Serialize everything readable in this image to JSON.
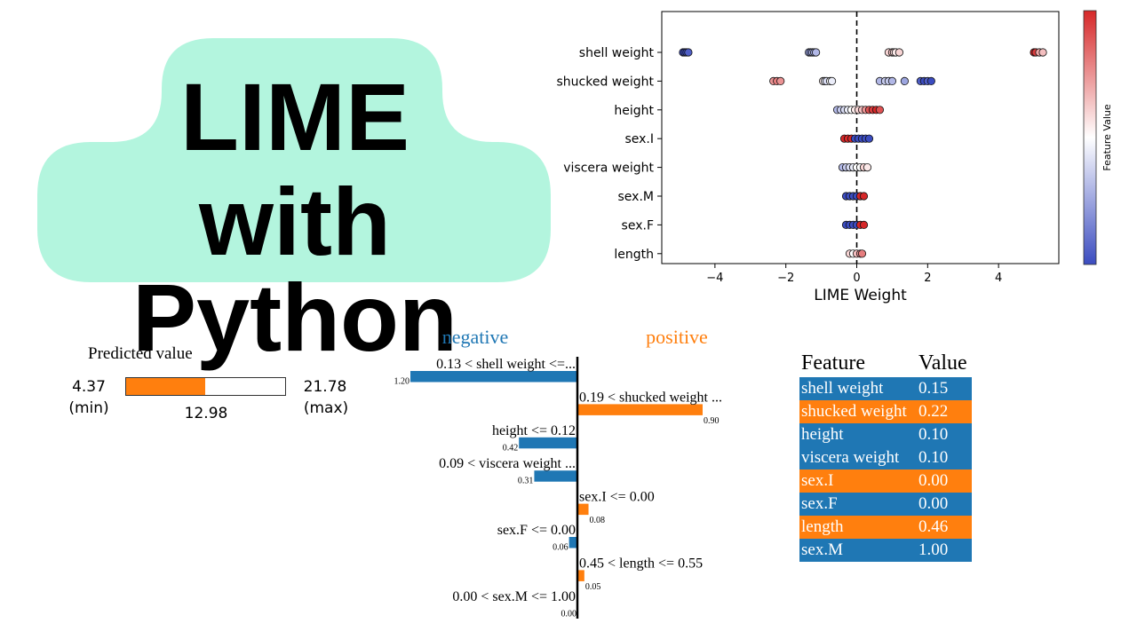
{
  "title": {
    "line1": "LIME",
    "line2": "with Python",
    "bg_color": "#b3f5de"
  },
  "colors": {
    "negative": "#1f77b4",
    "positive": "#ff7f0e",
    "colormap": [
      "#3b4cc0",
      "#ffffff",
      "#d62728"
    ]
  },
  "chart_data": [
    {
      "type": "scatter",
      "xlabel": "LIME Weight",
      "colorbar_label": "Feature Value",
      "xlim": [
        -5.5,
        5.7
      ],
      "xticks": [
        -4,
        -2,
        0,
        2,
        4
      ],
      "xtick_labels": [
        "−4",
        "−2",
        "0",
        "2",
        "4"
      ],
      "reference_line": 0,
      "features": [
        "shell weight",
        "shucked weight",
        "height",
        "sex.I",
        "viscera weight",
        "sex.M",
        "sex.F",
        "length"
      ],
      "points": [
        {
          "feature": "shell weight",
          "x": [
            -4.9,
            -4.85,
            -4.8,
            -4.75,
            -1.35,
            -1.3,
            -1.25,
            -1.2,
            -1.15,
            0.9,
            1.0,
            1.05,
            1.1,
            1.2,
            5.0,
            5.05,
            5.15,
            5.25
          ],
          "values": [
            0.0,
            0.0,
            0.0,
            0.05,
            0.25,
            0.2,
            0.3,
            0.25,
            0.3,
            0.6,
            0.65,
            0.6,
            0.55,
            0.6,
            1.0,
            0.95,
            0.7,
            0.65
          ]
        },
        {
          "feature": "shucked weight",
          "x": [
            -2.35,
            -2.25,
            -2.15,
            -0.95,
            -0.9,
            -0.85,
            -0.75,
            -0.7,
            0.65,
            0.8,
            0.9,
            1.0,
            1.35,
            1.8,
            1.9,
            2.0,
            2.1
          ],
          "values": [
            0.75,
            0.8,
            0.75,
            0.55,
            0.45,
            0.4,
            0.5,
            0.45,
            0.3,
            0.35,
            0.35,
            0.3,
            0.25,
            0.05,
            0.0,
            0.05,
            0.0
          ]
        },
        {
          "feature": "height",
          "x": [
            -0.55,
            -0.45,
            -0.35,
            -0.25,
            -0.15,
            -0.05,
            0.05,
            0.15,
            0.25,
            0.35,
            0.45,
            0.55,
            0.65
          ],
          "values": [
            0.3,
            0.35,
            0.4,
            0.45,
            0.5,
            0.55,
            0.6,
            0.65,
            0.75,
            0.9,
            0.95,
            1.0,
            0.9
          ]
        },
        {
          "feature": "sex.I",
          "x": [
            -0.35,
            -0.25,
            -0.15,
            -0.05,
            0.05,
            0.15,
            0.25,
            0.35
          ],
          "values": [
            1.0,
            1.0,
            1.0,
            0.0,
            0.0,
            0.0,
            0.0,
            0.0
          ]
        },
        {
          "feature": "viscera weight",
          "x": [
            -0.4,
            -0.3,
            -0.2,
            -0.1,
            0.0,
            0.1,
            0.2,
            0.3
          ],
          "values": [
            0.3,
            0.35,
            0.4,
            0.45,
            0.5,
            0.5,
            0.6,
            0.55
          ]
        },
        {
          "feature": "sex.M",
          "x": [
            -0.3,
            -0.2,
            -0.1,
            0.0,
            0.1,
            0.2
          ],
          "values": [
            0.0,
            0.0,
            0.0,
            0.0,
            1.0,
            1.0
          ]
        },
        {
          "feature": "sex.F",
          "x": [
            -0.3,
            -0.2,
            -0.1,
            0.0,
            0.1,
            0.2
          ],
          "values": [
            0.0,
            0.0,
            0.0,
            0.0,
            1.0,
            1.0
          ]
        },
        {
          "feature": "length",
          "x": [
            -0.2,
            -0.1,
            0.0,
            0.1,
            0.15
          ],
          "values": [
            0.6,
            0.5,
            0.65,
            0.75,
            0.8
          ]
        }
      ]
    },
    {
      "type": "bar",
      "orientation": "horizontal",
      "group_labels": {
        "negative": "negative",
        "positive": "positive"
      },
      "xlim": [
        -1.2,
        1.2
      ],
      "bars": [
        {
          "label": "0.13 < shell weight <=...",
          "value": -1.2,
          "value_label": "1.20"
        },
        {
          "label": "0.19 < shucked weight ...",
          "value": 0.9,
          "value_label": "0.90"
        },
        {
          "label": "height <= 0.12",
          "value": -0.42,
          "value_label": "0.42"
        },
        {
          "label": "0.09 < viscera weight ...",
          "value": -0.31,
          "value_label": "0.31"
        },
        {
          "label": "sex.I <= 0.00",
          "value": 0.08,
          "value_label": "0.08"
        },
        {
          "label": "sex.F <= 0.00",
          "value": -0.06,
          "value_label": "0.06"
        },
        {
          "label": "0.45 < length <= 0.55",
          "value": 0.05,
          "value_label": "0.05"
        },
        {
          "label": "0.00 < sex.M <= 1.00",
          "value": 0.0,
          "value_label": "0.00"
        }
      ]
    }
  ],
  "predicted": {
    "title": "Predicted value",
    "min": 4.37,
    "max": 21.78,
    "value": 12.98,
    "min_label": "4.37",
    "min_tag": "(min)",
    "max_label": "21.78",
    "max_tag": "(max)",
    "value_label": "12.98"
  },
  "feature_table": {
    "headers": [
      "Feature",
      "Value"
    ],
    "rows": [
      {
        "feature": "shell weight",
        "value": "0.15",
        "sign": "negative"
      },
      {
        "feature": "shucked weight",
        "value": "0.22",
        "sign": "positive"
      },
      {
        "feature": "height",
        "value": "0.10",
        "sign": "negative"
      },
      {
        "feature": "viscera weight",
        "value": "0.10",
        "sign": "negative"
      },
      {
        "feature": "sex.I",
        "value": "0.00",
        "sign": "positive"
      },
      {
        "feature": "sex.F",
        "value": "0.00",
        "sign": "negative"
      },
      {
        "feature": "length",
        "value": "0.46",
        "sign": "positive"
      },
      {
        "feature": "sex.M",
        "value": "1.00",
        "sign": "negative"
      }
    ]
  }
}
